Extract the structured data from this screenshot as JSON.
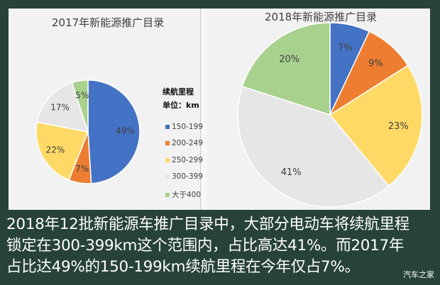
{
  "chart_data": [
    {
      "type": "pie",
      "title": "2017年新能源推广目录",
      "categories": [
        "150-199",
        "200-249",
        "250-299",
        "300-399",
        "大于400"
      ],
      "values": [
        49,
        7,
        22,
        17,
        5
      ],
      "labels": [
        "49%",
        "7%",
        "22%",
        "17%",
        "5%"
      ],
      "colors": [
        "#4472c4",
        "#ed7d31",
        "#ffd966",
        "#e7e6e6",
        "#a9d18e"
      ],
      "legend": {
        "title_line1": "续航里程",
        "title_line2": "单位：km",
        "position": "right"
      }
    },
    {
      "type": "pie",
      "title": "2018年新能源推广目录",
      "categories": [
        "150-199",
        "200-249",
        "250-299",
        "300-399",
        "大于400"
      ],
      "values": [
        7,
        9,
        23,
        41,
        20
      ],
      "labels": [
        "7%",
        "9%",
        "23%",
        "41%",
        "20%"
      ],
      "colors": [
        "#4472c4",
        "#ed7d31",
        "#ffd966",
        "#e7e6e6",
        "#a9d18e"
      ]
    }
  ],
  "caption": {
    "line1": "2018年12批新能源车推广目录中，大部分电动车将续航里程",
    "line2": "锁定在300-399km这个范围内，占比高达41%。而2017年",
    "line3": "占比达49%的150-199km续航里程在今年仅占7%。"
  },
  "watermark": "汽车之家"
}
